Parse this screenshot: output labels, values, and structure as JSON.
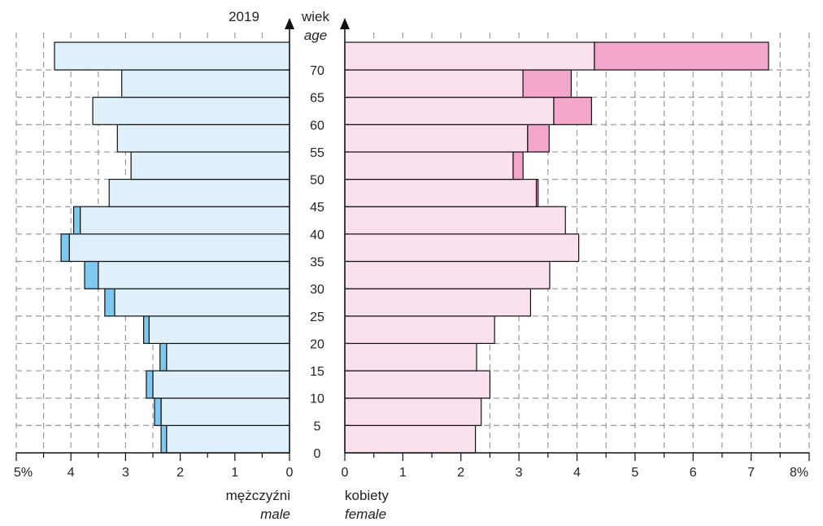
{
  "chart_data": {
    "type": "bar",
    "title": "2019",
    "age_axis": {
      "label": "wiek",
      "label_en": "age",
      "ticks": [
        0,
        5,
        10,
        15,
        20,
        25,
        30,
        35,
        40,
        45,
        50,
        55,
        60,
        65,
        70
      ]
    },
    "x_axis": {
      "left_label": "mężczyźni",
      "left_label_en": "male",
      "right_label": "kobiety",
      "right_label_en": "female",
      "left_ticks": [
        "5%",
        "4",
        "3",
        "2",
        "1",
        "0"
      ],
      "right_ticks": [
        "0",
        "1",
        "2",
        "3",
        "4",
        "5",
        "6",
        "7",
        "8%"
      ],
      "left_range": [
        0,
        5
      ],
      "right_range": [
        0,
        8
      ]
    },
    "grid": true,
    "age_groups": [
      "0-4",
      "5-9",
      "10-14",
      "15-19",
      "20-24",
      "25-29",
      "30-34",
      "35-39",
      "40-44",
      "45-49",
      "50-54",
      "55-59",
      "60-64",
      "65-69",
      "70+"
    ],
    "series": [
      {
        "name": "mężczyźni",
        "side": "left",
        "base": [
          2.25,
          2.35,
          2.5,
          2.25,
          2.57,
          3.2,
          3.5,
          4.03,
          3.83,
          3.3,
          2.9,
          3.15,
          3.6,
          3.07,
          4.3
        ],
        "extra": [
          0.1,
          0.12,
          0.12,
          0.12,
          0.1,
          0.18,
          0.25,
          0.15,
          0.12,
          0.0,
          0.0,
          0.0,
          0.0,
          0.0,
          0.0
        ]
      },
      {
        "name": "kobiety",
        "side": "right",
        "base": [
          2.25,
          2.35,
          2.5,
          2.27,
          2.58,
          3.2,
          3.53,
          4.03,
          3.8,
          3.3,
          2.9,
          3.15,
          3.6,
          3.07,
          4.3
        ],
        "extra": [
          0.0,
          0.0,
          0.0,
          0.0,
          0.0,
          0.0,
          0.0,
          0.0,
          0.0,
          0.03,
          0.17,
          0.37,
          0.65,
          0.83,
          3.0
        ]
      }
    ],
    "colors": {
      "male_base": "#dff0fb",
      "male_extra": "#7fc8ef",
      "female_base": "#fbe0ee",
      "female_extra": "#f2a7cb",
      "grid": "#9a9a9a",
      "axis": "#111111"
    }
  }
}
